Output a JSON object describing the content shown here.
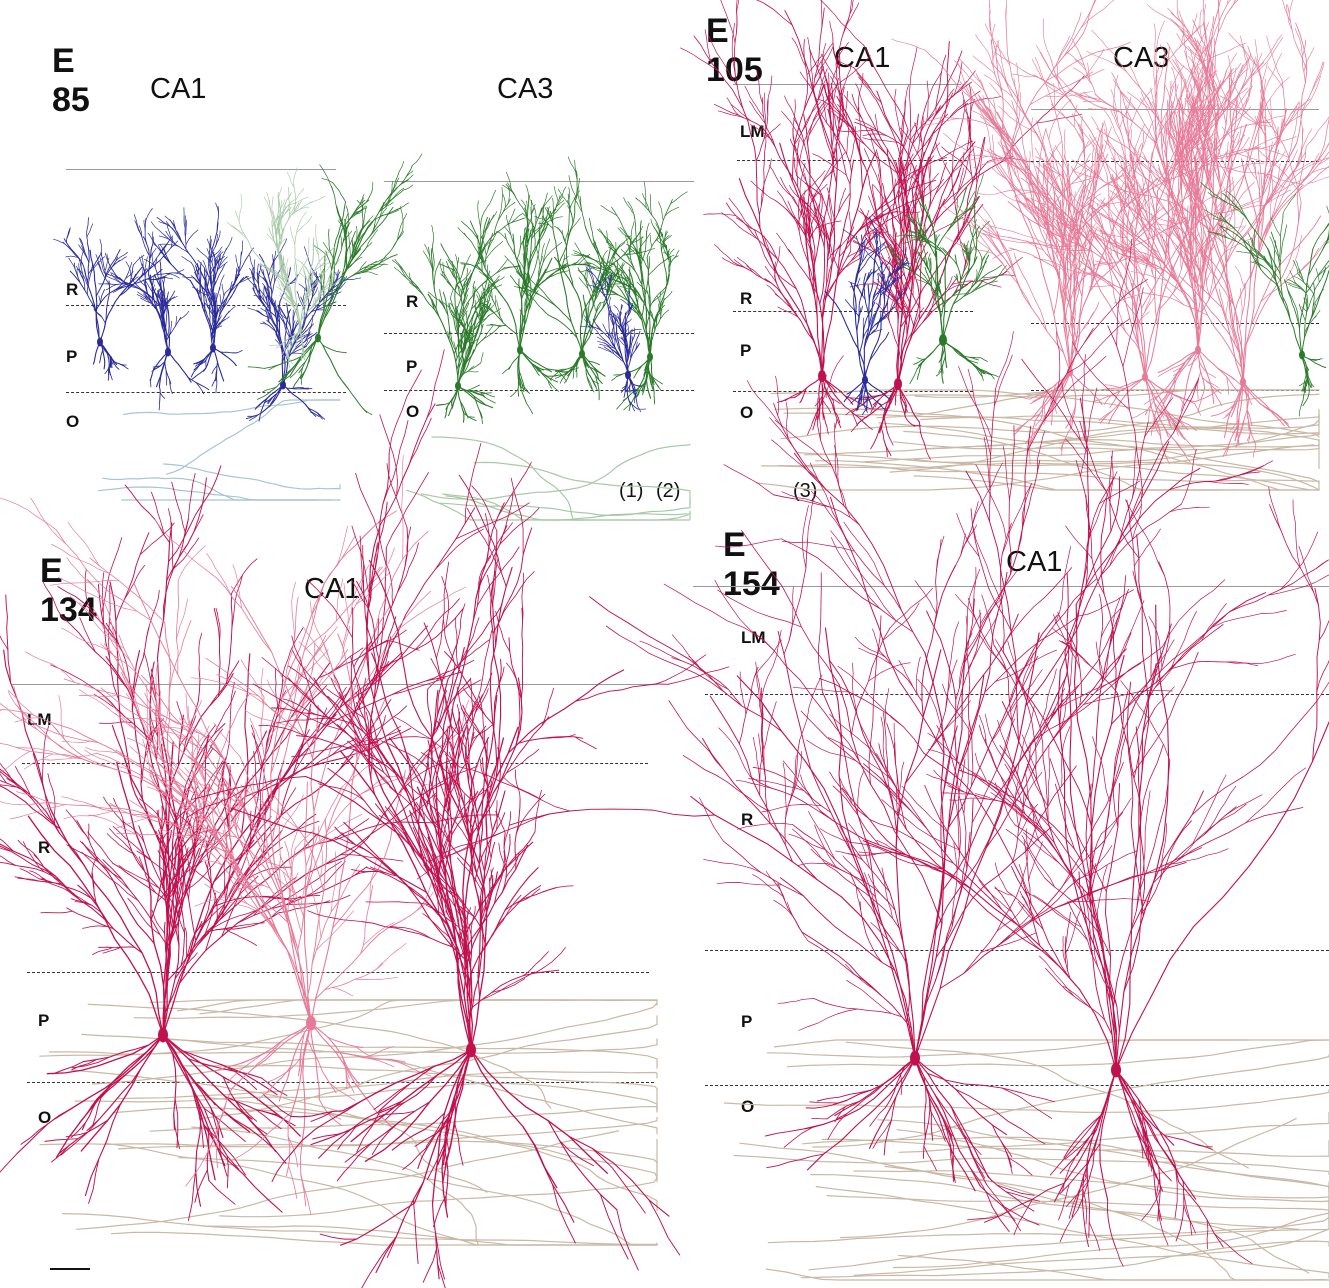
{
  "panels": {
    "e85": {
      "age": "E 85",
      "ca1": "CA1",
      "ca3": "CA3",
      "layers_ca1": [
        "R",
        "P",
        "O"
      ],
      "layers_ca3": [
        "R",
        "P",
        "O"
      ],
      "cell_labels": [
        "(1)",
        "(2)"
      ]
    },
    "e105": {
      "age": "E 105",
      "ca1": "CA1",
      "ca3": "CA3",
      "layers": [
        "LM",
        "R",
        "P",
        "O"
      ],
      "cell_labels": [
        "(3)"
      ]
    },
    "e134": {
      "age": "E 134",
      "ca1": "CA1",
      "layers": [
        "LM",
        "R",
        "P",
        "O"
      ]
    },
    "e154": {
      "age": "E 154",
      "ca1": "CA1",
      "layers": [
        "LM",
        "R",
        "P",
        "O"
      ]
    }
  },
  "colors": {
    "dendrite_dark_red": "#c0104e",
    "dendrite_light_red": "#e77a98",
    "axon_tan": "#c9b8a6",
    "blue_cell": "#2a2a9a",
    "green_cell": "#2a7a2a",
    "light_green": "#a8c8a8",
    "light_blue": "#a8c4d4"
  }
}
